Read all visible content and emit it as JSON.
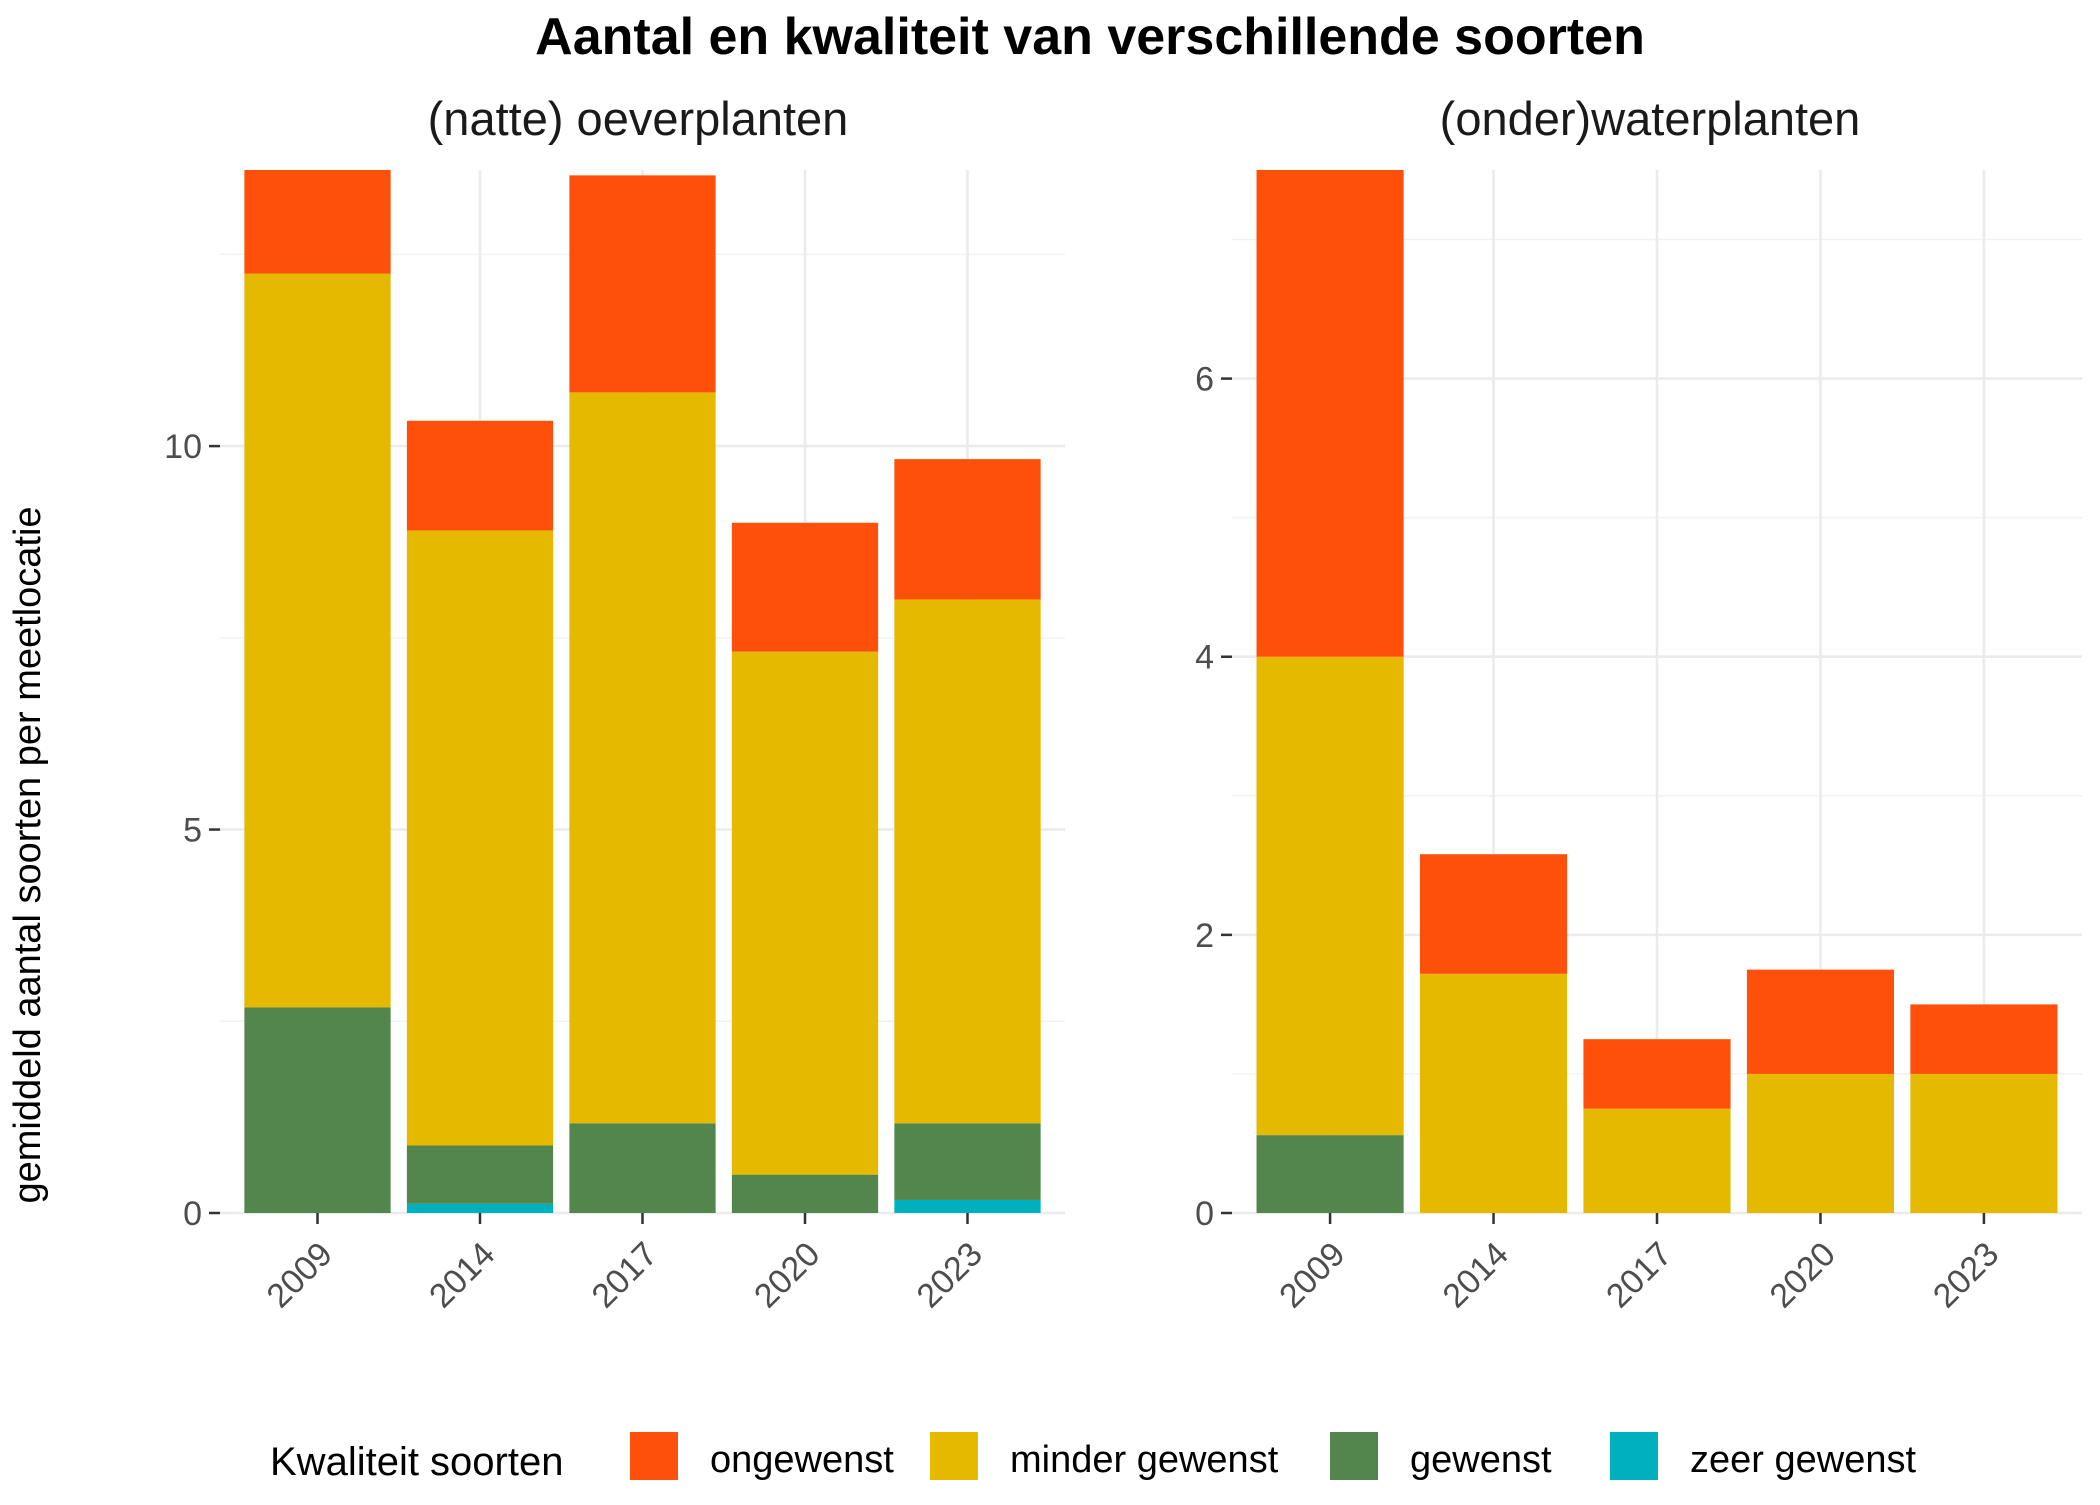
{
  "chart_data": {
    "type": "bar",
    "stacked": true,
    "title": "Aantal en kwaliteit van verschillende soorten",
    "ylabel": "gemiddeld aantal soorten per meetlocatie",
    "legend": {
      "title": "Kwaliteit soorten",
      "placement": "bottom",
      "entries": [
        "ongewenst",
        "minder gewenst",
        "gewenst",
        "zeer gewenst"
      ]
    },
    "colors": {
      "ongewenst": "#fe500b",
      "minder gewenst": "#e5b900",
      "gewenst": "#52864c",
      "zeer gewenst": "#00b0be"
    },
    "grid": true,
    "panels": [
      {
        "title": "(natte) oeverplanten",
        "categories": [
          "2009",
          "2014",
          "2017",
          "2020",
          "2023"
        ],
        "ylim": [
          0,
          13.6
        ],
        "yticks": [
          0,
          5,
          10
        ],
        "series": [
          {
            "name": "zeer gewenst",
            "values": [
              0,
              0.12,
              0,
              0,
              0.17
            ]
          },
          {
            "name": "gewenst",
            "values": [
              2.68,
              0.76,
              1.17,
              0.5,
              1.0
            ]
          },
          {
            "name": "minder gewenst",
            "values": [
              9.57,
              8.02,
              9.53,
              6.82,
              6.83
            ]
          },
          {
            "name": "ongewenst",
            "values": [
              1.35,
              1.43,
              2.83,
              1.68,
              1.83
            ]
          }
        ]
      },
      {
        "title": "(onder)waterplanten",
        "categories": [
          "2009",
          "2014",
          "2017",
          "2020",
          "2023"
        ],
        "ylim": [
          0,
          7.5
        ],
        "yticks": [
          0,
          2,
          4,
          6
        ],
        "series": [
          {
            "name": "zeer gewenst",
            "values": [
              0,
              0,
              0,
              0,
              0
            ]
          },
          {
            "name": "gewenst",
            "values": [
              0.56,
              0,
              0,
              0,
              0
            ]
          },
          {
            "name": "minder gewenst",
            "values": [
              3.44,
              1.72,
              0.75,
              1.0,
              1.0
            ]
          },
          {
            "name": "ongewenst",
            "values": [
              3.5,
              0.86,
              0.5,
              0.75,
              0.5
            ]
          }
        ]
      }
    ]
  }
}
